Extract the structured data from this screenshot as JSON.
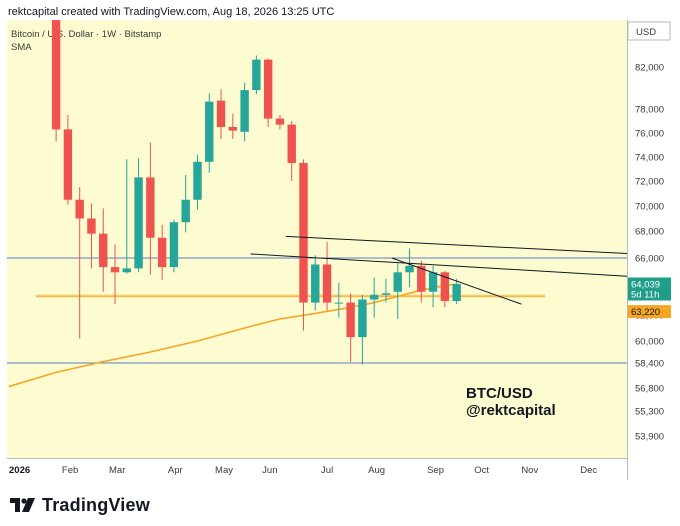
{
  "header": {
    "text": "rektcapital created with TradingView.com, Aug 18, 2026 13:25 UTC"
  },
  "footer": {
    "brand": "TradingView"
  },
  "colors": {
    "background": "#fdfbd0",
    "up": "#26a69a",
    "down": "#ef5350",
    "sma": "#f5a623",
    "support": "#f5a623",
    "hline": "#5b7dbf",
    "trend": "#131722"
  },
  "chart_data": {
    "type": "candlestick",
    "symbol_label": "Bitcoin / U.S. Dollar · 1W · Bitstamp",
    "indicator_label": "SMA",
    "currency": "USD",
    "year_label": "2026",
    "x_labels": [
      {
        "text": "2026",
        "week": 0,
        "bold": true
      },
      {
        "text": "Feb",
        "week": 5
      },
      {
        "text": "Mar",
        "week": 9
      },
      {
        "text": "Apr",
        "week": 14
      },
      {
        "text": "May",
        "week": 18
      },
      {
        "text": "Jun",
        "week": 22
      },
      {
        "text": "Jul",
        "week": 27
      },
      {
        "text": "Aug",
        "week": 31
      },
      {
        "text": "Sep",
        "week": 36
      },
      {
        "text": "Oct",
        "week": 40
      },
      {
        "text": "Nov",
        "week": 44
      },
      {
        "text": "Dec",
        "week": 49
      }
    ],
    "y_ticks": [
      53900,
      55300,
      56800,
      58400,
      60000,
      62000,
      64000,
      66000,
      68000,
      70000,
      72000,
      74000,
      76000,
      78000,
      82000
    ],
    "candles": [
      {
        "week": 4,
        "o": 86500,
        "h": 87500,
        "l": 75300,
        "c": 76300
      },
      {
        "week": 5,
        "o": 76300,
        "h": 77500,
        "l": 70100,
        "c": 70500
      },
      {
        "week": 6,
        "o": 70500,
        "h": 71500,
        "l": 60200,
        "c": 69000
      },
      {
        "week": 7,
        "o": 69000,
        "h": 70200,
        "l": 65200,
        "c": 67800
      },
      {
        "week": 8,
        "o": 67800,
        "h": 69800,
        "l": 63500,
        "c": 65300
      },
      {
        "week": 9,
        "o": 65300,
        "h": 67000,
        "l": 62700,
        "c": 64900
      },
      {
        "week": 10,
        "o": 64900,
        "h": 73800,
        "l": 64800,
        "c": 65200
      },
      {
        "week": 11,
        "o": 65200,
        "h": 73900,
        "l": 64900,
        "c": 72300
      },
      {
        "week": 12,
        "o": 72300,
        "h": 75200,
        "l": 64700,
        "c": 67500
      },
      {
        "week": 13,
        "o": 67500,
        "h": 68500,
        "l": 64300,
        "c": 65300
      },
      {
        "week": 14,
        "o": 65300,
        "h": 68900,
        "l": 64900,
        "c": 68700
      },
      {
        "week": 15,
        "o": 68700,
        "h": 72500,
        "l": 67900,
        "c": 70500
      },
      {
        "week": 16,
        "o": 70500,
        "h": 74200,
        "l": 69700,
        "c": 73600
      },
      {
        "week": 17,
        "o": 73600,
        "h": 79500,
        "l": 72700,
        "c": 78700
      },
      {
        "week": 18,
        "o": 78800,
        "h": 79900,
        "l": 75500,
        "c": 76500
      },
      {
        "week": 19,
        "o": 76500,
        "h": 77600,
        "l": 75500,
        "c": 76200
      },
      {
        "week": 20,
        "o": 76100,
        "h": 80500,
        "l": 75300,
        "c": 79800
      },
      {
        "week": 21,
        "o": 79800,
        "h": 83100,
        "l": 79400,
        "c": 82700
      },
      {
        "week": 22,
        "o": 82700,
        "h": 82800,
        "l": 76500,
        "c": 77200
      },
      {
        "week": 23,
        "o": 77200,
        "h": 77500,
        "l": 76300,
        "c": 76700
      },
      {
        "week": 24,
        "o": 76700,
        "h": 77000,
        "l": 72000,
        "c": 73500
      },
      {
        "week": 25,
        "o": 73500,
        "h": 73800,
        "l": 60800,
        "c": 62800
      },
      {
        "week": 26,
        "o": 62800,
        "h": 66200,
        "l": 62300,
        "c": 65500
      },
      {
        "week": 27,
        "o": 65500,
        "h": 67200,
        "l": 62300,
        "c": 62800
      },
      {
        "week": 28,
        "o": 62800,
        "h": 64100,
        "l": 61800,
        "c": 62800
      },
      {
        "week": 29,
        "o": 62800,
        "h": 63400,
        "l": 58500,
        "c": 60300
      },
      {
        "week": 30,
        "o": 60300,
        "h": 63300,
        "l": 58300,
        "c": 63000
      },
      {
        "week": 31,
        "o": 63000,
        "h": 64500,
        "l": 61800,
        "c": 63300
      },
      {
        "week": 32,
        "o": 63300,
        "h": 64400,
        "l": 62800,
        "c": 63400
      },
      {
        "week": 33,
        "o": 63500,
        "h": 65600,
        "l": 61700,
        "c": 64900
      },
      {
        "week": 34,
        "o": 64900,
        "h": 66700,
        "l": 63800,
        "c": 65400
      },
      {
        "week": 35,
        "o": 65400,
        "h": 65800,
        "l": 62800,
        "c": 63500
      },
      {
        "week": 36,
        "o": 63500,
        "h": 65400,
        "l": 62500,
        "c": 64900
      },
      {
        "week": 37,
        "o": 64900,
        "h": 65000,
        "l": 62500,
        "c": 62900
      },
      {
        "week": 38,
        "o": 62900,
        "h": 64400,
        "l": 62700,
        "c": 64000
      }
    ],
    "sma": [
      {
        "week": 0,
        "v": 56900
      },
      {
        "week": 4,
        "v": 57800
      },
      {
        "week": 8,
        "v": 58500
      },
      {
        "week": 12,
        "v": 59200
      },
      {
        "week": 16,
        "v": 60000
      },
      {
        "week": 20,
        "v": 61000
      },
      {
        "week": 23,
        "v": 61700
      },
      {
        "week": 26,
        "v": 62100
      },
      {
        "week": 29,
        "v": 62500
      },
      {
        "week": 31,
        "v": 62800
      },
      {
        "week": 33,
        "v": 63200
      },
      {
        "week": 35,
        "v": 63600
      },
      {
        "week": 37,
        "v": 63900
      },
      {
        "week": 38,
        "v": 64000
      }
    ],
    "horizontal_lines": [
      66000,
      58400
    ],
    "support_level": 63220,
    "trendlines": [
      {
        "w1": 23.5,
        "v1": 67600,
        "w2": 60,
        "v2": 66000
      },
      {
        "w1": 20.5,
        "v1": 66300,
        "w2": 60,
        "v2": 64200
      },
      {
        "w1": 32.5,
        "v1": 66000,
        "w2": 43.5,
        "v2": 62700
      }
    ],
    "current_price": {
      "value": "64,039",
      "countdown": "5d 11h",
      "price_num": 64039
    },
    "support_price": {
      "value": "63,220",
      "price_num": 63220
    },
    "annotation": {
      "line1": "BTC/USD",
      "line2": "@rektcapital"
    }
  }
}
